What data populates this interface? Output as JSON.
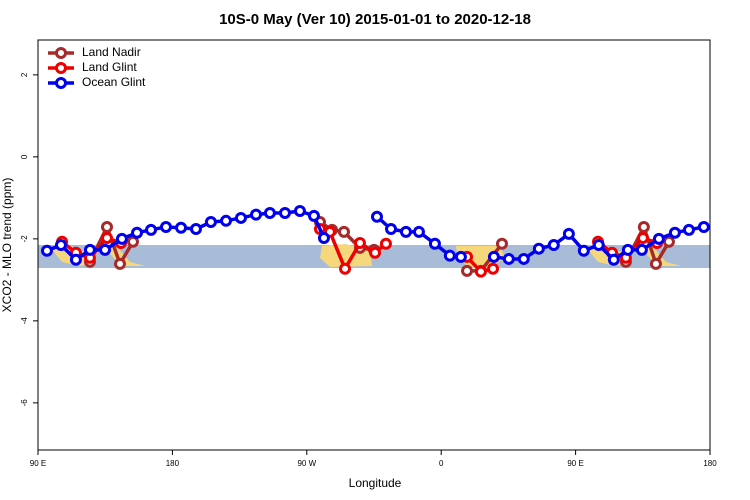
{
  "chart_data": {
    "type": "line",
    "title": "10S-0 May (Ver 10)   2015-01-01 to 2020-12-18",
    "x_label": "Longitude",
    "y_label": "XCO2 - MLO trend (ppm)",
    "xlim": [
      90,
      540
    ],
    "xticks": [
      {
        "value": 90,
        "label": "90 E"
      },
      180,
      {
        "value": 270,
        "label": "90 W"
      },
      {
        "value": 360,
        "label": "0"
      },
      {
        "value": 450,
        "label": "90 E"
      },
      {
        "value": 540,
        "label": "180"
      }
    ],
    "ylim": [
      -7.15,
      2.85
    ],
    "yticks": [
      2,
      0,
      -2,
      -4,
      -6
    ],
    "legend": "top-left",
    "series": [
      {
        "name": "Land Nadir",
        "color": "#a52a2a",
        "x": [
          124.8,
          136.2,
          144.9,
          153.6,
          200,
          278.8,
          286.9,
          294.9,
          305.6,
          315.0,
          350,
          377.3,
          386.6,
          400.7,
          440,
          483.7,
          495.7,
          503.8,
          512.5
        ],
        "values": [
          -2.56,
          -1.71,
          -2.61,
          -2.07,
          null,
          -1.59,
          -1.78,
          -1.83,
          -2.22,
          -2.27,
          null,
          -2.78,
          -2.78,
          -2.12,
          null,
          -2.56,
          -1.71,
          -2.61,
          -2.07
        ]
      },
      {
        "name": "Land Glint",
        "color": "#ee0000",
        "x": [
          106.1,
          115.4,
          124.8,
          136.2,
          145.6,
          200,
          278.8,
          285.5,
          295.6,
          305.6,
          315.7,
          323.0,
          350,
          377.3,
          386.6,
          394.7,
          440,
          465.0,
          474.4,
          483.7,
          495.1,
          504.5
        ],
        "values": [
          -2.07,
          -2.34,
          -2.46,
          -1.98,
          -2.1,
          null,
          -1.76,
          -1.83,
          -2.73,
          -2.1,
          -2.34,
          -2.12,
          null,
          -2.44,
          -2.8,
          -2.73,
          null,
          -2.07,
          -2.34,
          -2.46,
          -1.98,
          -2.1
        ]
      },
      {
        "name": "Ocean Glint",
        "color": "#0000ee",
        "x": [
          96.0,
          105.4,
          115.4,
          124.8,
          134.9,
          146.2,
          156.3,
          165.7,
          175.7,
          185.8,
          195.8,
          205.8,
          215.9,
          225.9,
          236.0,
          245.3,
          255.4,
          265.4,
          274.8,
          281.5,
          299,
          317.0,
          326.4,
          336.4,
          345.1,
          355.8,
          365.8,
          373.2,
          384,
          395.3,
          405.3,
          415.3,
          425.4,
          435.4,
          445.5,
          455.5,
          465.5,
          475.6,
          485.0,
          494.4,
          505.8,
          516.5,
          525.9,
          535.9
        ],
        "values": [
          -2.29,
          -2.15,
          -2.51,
          -2.27,
          -2.27,
          -2.0,
          -1.85,
          -1.78,
          -1.71,
          -1.73,
          -1.76,
          -1.59,
          -1.56,
          -1.49,
          -1.41,
          -1.37,
          -1.37,
          -1.32,
          -1.44,
          -1.98,
          null,
          -1.46,
          -1.76,
          -1.83,
          -1.83,
          -2.12,
          -2.41,
          -2.44,
          null,
          -2.44,
          -2.49,
          -2.49,
          -2.24,
          -2.15,
          -1.88,
          -2.29,
          -2.15,
          -2.51,
          -2.27,
          -2.27,
          -2.0,
          -1.85,
          -1.78,
          -1.71
        ]
      }
    ]
  }
}
